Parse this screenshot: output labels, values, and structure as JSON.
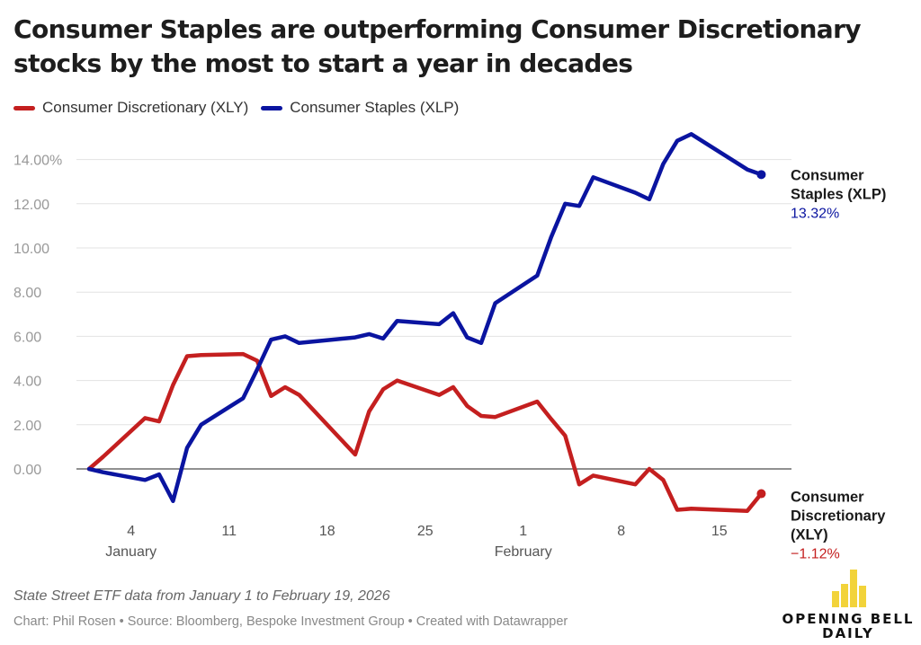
{
  "title": "Consumer Staples are outperforming Consumer Discretionary stocks by the most to start a year in decades",
  "note": "State Street ETF data from January 1 to February 19, 2026",
  "credits": "Chart: Phil Rosen • Source: Bloomberg, Bespoke Investment Group • Created with Datawrapper",
  "logo": {
    "line1": "OPENING BELL",
    "line2": "DAILY",
    "color": "#f2d33a"
  },
  "colors": {
    "xly": "#c41f1f",
    "xlp": "#0a14a0",
    "grid": "#e3e3e3",
    "axis": "#222222",
    "tick": "#999999"
  },
  "chart_data": {
    "type": "line",
    "title": "Consumer Staples are outperforming Consumer Discretionary stocks by the most to start a year in decades",
    "xlabel": "",
    "ylabel": "",
    "ylim": [
      -2.6,
      15.4
    ],
    "y_ticks": [
      {
        "value": 0,
        "label": "0.00"
      },
      {
        "value": 2,
        "label": "2.00"
      },
      {
        "value": 4,
        "label": "4.00"
      },
      {
        "value": 6,
        "label": "6.00"
      },
      {
        "value": 8,
        "label": "8.00"
      },
      {
        "value": 10,
        "label": "10.00"
      },
      {
        "value": 12,
        "label": "12.00"
      },
      {
        "value": 14,
        "label": "14.00%"
      }
    ],
    "x_domain": [
      "2026-01-01",
      "2026-02-19"
    ],
    "x_ticks": [
      {
        "date": "2026-01-04",
        "label": "4",
        "month": "January"
      },
      {
        "date": "2026-01-11",
        "label": "11"
      },
      {
        "date": "2026-01-18",
        "label": "18"
      },
      {
        "date": "2026-01-25",
        "label": "25"
      },
      {
        "date": "2026-02-01",
        "label": "1",
        "month": "February"
      },
      {
        "date": "2026-02-08",
        "label": "8"
      },
      {
        "date": "2026-02-15",
        "label": "15"
      }
    ],
    "legend_position": "top-left",
    "series": [
      {
        "name": "Consumer Discretionary (XLY)",
        "key": "xly",
        "end_label": [
          "Consumer",
          "Discretionary",
          "(XLY)"
        ],
        "end_value_label": "−1.12%",
        "points": [
          [
            "2026-01-01",
            0
          ],
          [
            "2026-01-02",
            0.55
          ],
          [
            "2026-01-05",
            2.3
          ],
          [
            "2026-01-06",
            2.15
          ],
          [
            "2026-01-07",
            3.8
          ],
          [
            "2026-01-08",
            5.1
          ],
          [
            "2026-01-09",
            5.15
          ],
          [
            "2026-01-12",
            5.2
          ],
          [
            "2026-01-13",
            4.9
          ],
          [
            "2026-01-14",
            3.3
          ],
          [
            "2026-01-15",
            3.7
          ],
          [
            "2026-01-16",
            3.35
          ],
          [
            "2026-01-20",
            0.65
          ],
          [
            "2026-01-21",
            2.6
          ],
          [
            "2026-01-22",
            3.6
          ],
          [
            "2026-01-23",
            4.0
          ],
          [
            "2026-01-26",
            3.35
          ],
          [
            "2026-01-27",
            3.7
          ],
          [
            "2026-01-28",
            2.85
          ],
          [
            "2026-01-29",
            2.4
          ],
          [
            "2026-01-30",
            2.35
          ],
          [
            "2026-02-02",
            3.05
          ],
          [
            "2026-02-03",
            2.25
          ],
          [
            "2026-02-04",
            1.5
          ],
          [
            "2026-02-05",
            -0.7
          ],
          [
            "2026-02-06",
            -0.3
          ],
          [
            "2026-02-09",
            -0.7
          ],
          [
            "2026-02-10",
            0
          ],
          [
            "2026-02-11",
            -0.5
          ],
          [
            "2026-02-12",
            -1.85
          ],
          [
            "2026-02-13",
            -1.8
          ],
          [
            "2026-02-17",
            -1.9
          ],
          [
            "2026-02-18",
            -1.12
          ]
        ]
      },
      {
        "name": "Consumer Staples (XLP)",
        "key": "xlp",
        "end_label": [
          "Consumer",
          "Staples (XLP)"
        ],
        "end_value_label": "13.32%",
        "points": [
          [
            "2026-01-01",
            0
          ],
          [
            "2026-01-02",
            -0.15
          ],
          [
            "2026-01-05",
            -0.5
          ],
          [
            "2026-01-06",
            -0.25
          ],
          [
            "2026-01-07",
            -1.45
          ],
          [
            "2026-01-08",
            0.95
          ],
          [
            "2026-01-09",
            2.0
          ],
          [
            "2026-01-12",
            3.2
          ],
          [
            "2026-01-13",
            4.5
          ],
          [
            "2026-01-14",
            5.85
          ],
          [
            "2026-01-15",
            6.0
          ],
          [
            "2026-01-16",
            5.7
          ],
          [
            "2026-01-20",
            5.95
          ],
          [
            "2026-01-21",
            6.1
          ],
          [
            "2026-01-22",
            5.9
          ],
          [
            "2026-01-23",
            6.7
          ],
          [
            "2026-01-26",
            6.55
          ],
          [
            "2026-01-27",
            7.05
          ],
          [
            "2026-01-28",
            5.95
          ],
          [
            "2026-01-29",
            5.7
          ],
          [
            "2026-01-30",
            7.5
          ],
          [
            "2026-02-02",
            8.75
          ],
          [
            "2026-02-03",
            10.5
          ],
          [
            "2026-02-04",
            12.0
          ],
          [
            "2026-02-05",
            11.9
          ],
          [
            "2026-02-06",
            13.2
          ],
          [
            "2026-02-09",
            12.5
          ],
          [
            "2026-02-10",
            12.2
          ],
          [
            "2026-02-11",
            13.8
          ],
          [
            "2026-02-12",
            14.85
          ],
          [
            "2026-02-13",
            15.15
          ],
          [
            "2026-02-17",
            13.55
          ],
          [
            "2026-02-18",
            13.32
          ]
        ]
      }
    ]
  }
}
